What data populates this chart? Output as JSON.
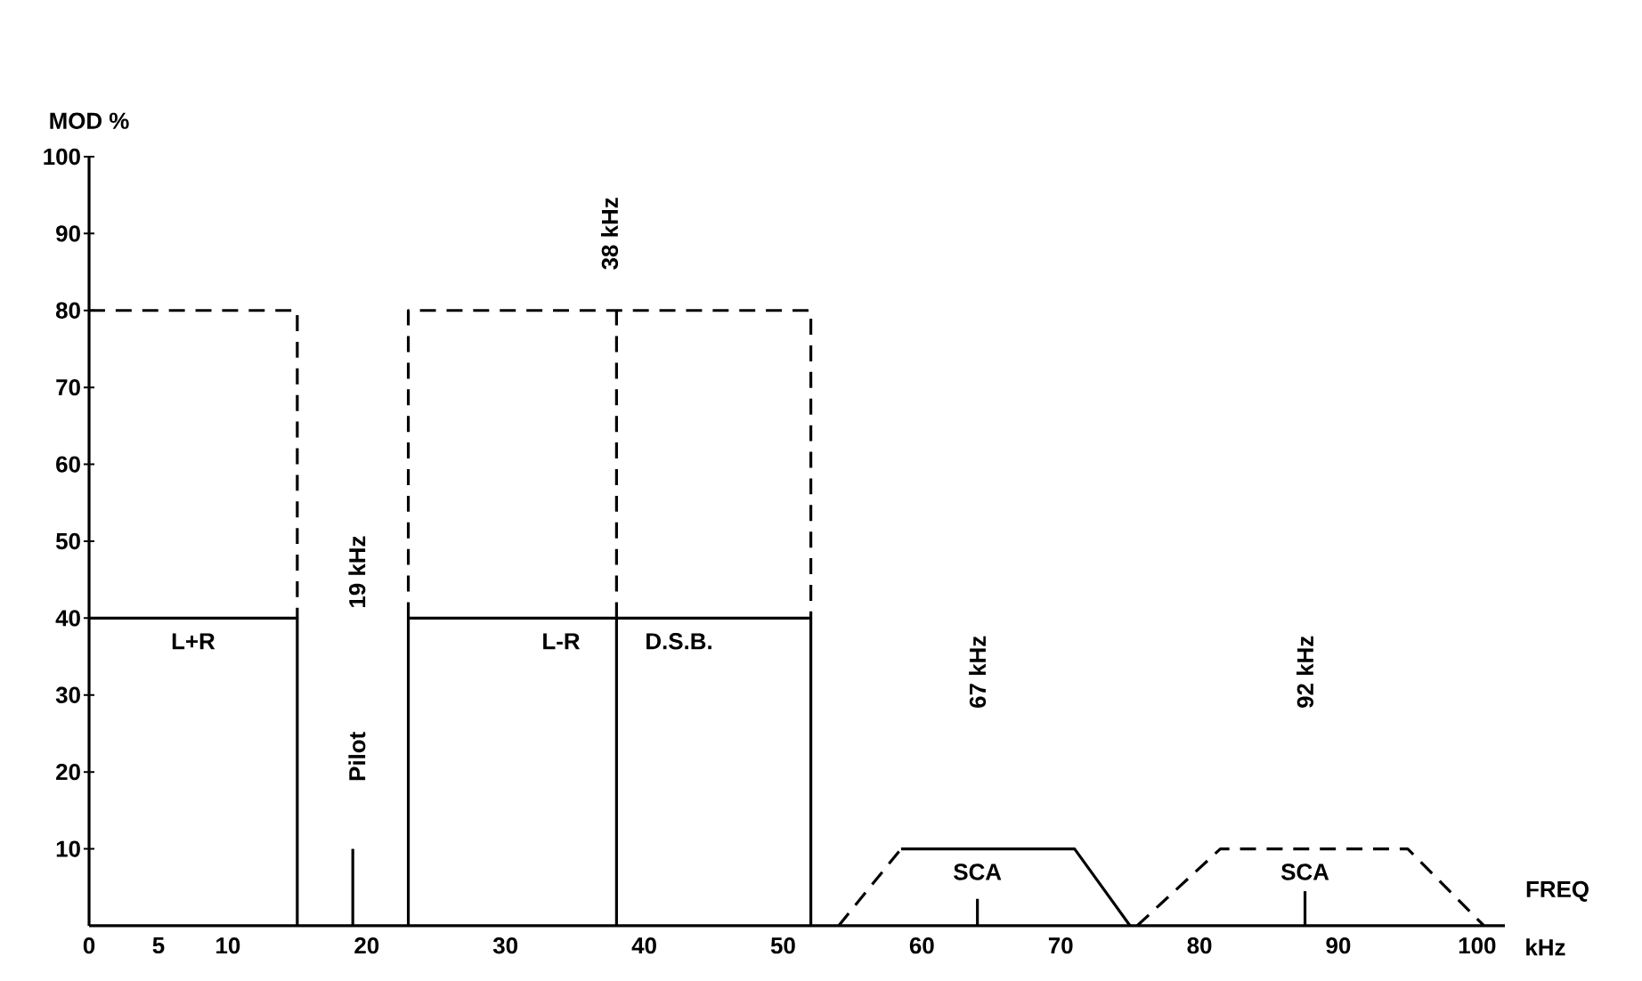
{
  "chart_data": {
    "type": "line",
    "xlabel": "FREQ",
    "ylabel": "MOD %",
    "xlim": [
      0,
      102
    ],
    "ylim": [
      0,
      100
    ],
    "xticks": [
      0,
      5,
      10,
      20,
      30,
      40,
      50,
      60,
      70,
      80,
      90,
      100
    ],
    "yticks": [
      10,
      20,
      30,
      40,
      50,
      60,
      70,
      80,
      90,
      100
    ],
    "series": [
      {
        "color": "#000000",
        "line_style": "solid",
        "x": [
          0,
          15,
          15
        ],
        "values": [
          40,
          40,
          0
        ]
      },
      {
        "color": "#000000",
        "line_style": "dashed",
        "x": [
          0,
          15,
          15
        ],
        "values": [
          80,
          80,
          40
        ]
      },
      {
        "color": "#000000",
        "line_style": "solid",
        "x": [
          19,
          19
        ],
        "values": [
          0,
          10
        ]
      },
      {
        "color": "#000000",
        "line_style": "solid",
        "x": [
          23,
          23,
          52,
          52
        ],
        "values": [
          0,
          40,
          40,
          0
        ]
      },
      {
        "color": "#000000",
        "line_style": "solid",
        "x": [
          38,
          38
        ],
        "values": [
          0,
          40
        ]
      },
      {
        "color": "#000000",
        "line_style": "dashed",
        "x": [
          23,
          23,
          52,
          52
        ],
        "values": [
          40,
          80,
          80,
          40
        ]
      },
      {
        "color": "#000000",
        "line_style": "dashed",
        "x": [
          38,
          38
        ],
        "values": [
          40,
          80
        ]
      },
      {
        "color": "#000000",
        "line_style": "dashed",
        "x": [
          54,
          58.5
        ],
        "values": [
          0,
          10
        ]
      },
      {
        "color": "#000000",
        "line_style": "solid",
        "x": [
          58.5,
          71,
          75
        ],
        "values": [
          10,
          10,
          0
        ]
      },
      {
        "color": "#000000",
        "line_style": "solid",
        "x": [
          64,
          64
        ],
        "values": [
          0,
          3.5
        ]
      },
      {
        "color": "#000000",
        "line_style": "dashed",
        "x": [
          75.5,
          81.5,
          95,
          100.5
        ],
        "values": [
          0,
          10,
          10,
          0
        ]
      },
      {
        "color": "#000000",
        "line_style": "solid",
        "x": [
          87.6,
          87.6
        ],
        "values": [
          0,
          4.5
        ]
      }
    ],
    "annotations": [
      "L+R",
      "L-R",
      "D.S.B.",
      "Pilot",
      "19 kHz",
      "38 kHz",
      "67 kHz",
      "92 kHz",
      "SCA",
      "SCA",
      "kHz"
    ]
  }
}
